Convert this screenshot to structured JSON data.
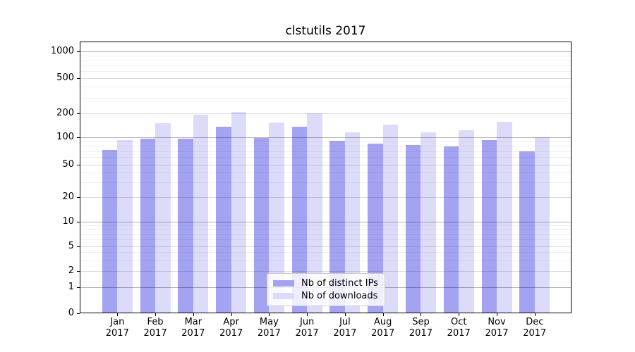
{
  "chart_data": {
    "type": "bar",
    "title": "clstutils 2017",
    "scale": "symlog",
    "grid": true,
    "legend_position": "lower center",
    "categories": [
      "Jan",
      "Feb",
      "Mar",
      "Apr",
      "May",
      "Jun",
      "Jul",
      "Aug",
      "Sep",
      "Oct",
      "Nov",
      "Dec"
    ],
    "year": "2017",
    "y_ticks": [
      0,
      1,
      2,
      5,
      10,
      20,
      50,
      100,
      200,
      500,
      1000
    ],
    "ylim": [
      0,
      1300
    ],
    "series": [
      {
        "name": "Nb of distinct IPs",
        "color": "#a3a3f2",
        "values": [
          72,
          96,
          96,
          134,
          98,
          134,
          90,
          85,
          81,
          79,
          93,
          70
        ]
      },
      {
        "name": "Nb of downloads",
        "color": "#dcdcfa",
        "values": [
          92,
          151,
          191,
          207,
          152,
          201,
          114,
          145,
          114,
          122,
          157,
          100
        ]
      }
    ]
  }
}
